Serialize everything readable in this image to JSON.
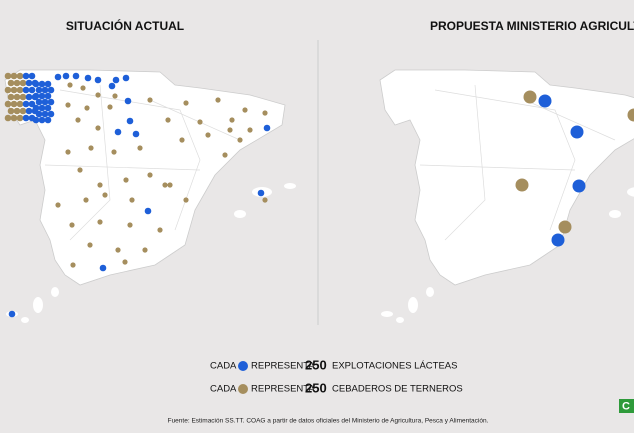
{
  "titles": {
    "left": "SITUACIÓN ACTUAL",
    "right": "PROPUESTA MINISTERIO AGRICULTURA"
  },
  "legend": [
    {
      "prefix": "CADA",
      "verb": "REPRESENTA",
      "amount": "250",
      "label": "EXPLOTACIONES LÁCTEAS"
    },
    {
      "prefix": "CADA",
      "verb": "REPRESENTA",
      "amount": "250",
      "label": "CEBADEROS DE TERNEROS"
    }
  ],
  "source": "Fuente: Estimación SS.TT. COAG a partir de datos oficiales del Ministerio de Agricultura, Pesca y Alimentación.",
  "logo": "C"
}
